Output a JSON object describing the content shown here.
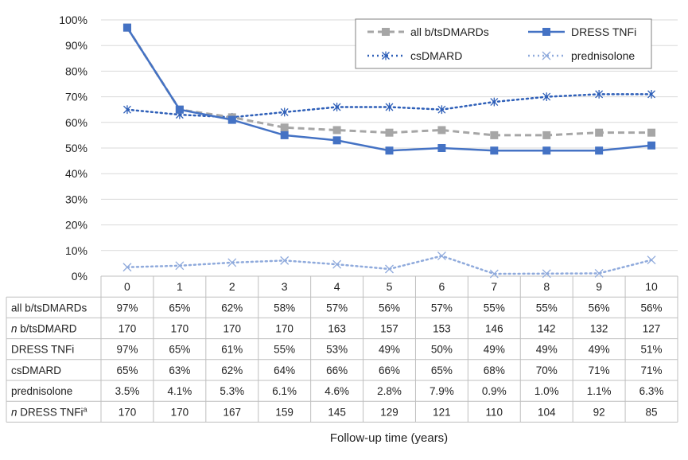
{
  "chart_data": {
    "type": "line",
    "title": "",
    "xlabel": "Follow-up time (years)",
    "ylabel": "",
    "x": [
      0,
      1,
      2,
      3,
      4,
      5,
      6,
      7,
      8,
      9,
      10
    ],
    "x_ticks": [
      "0",
      "1",
      "2",
      "3",
      "4",
      "5",
      "6",
      "7",
      "8",
      "9",
      "10"
    ],
    "ylim": [
      0,
      100
    ],
    "y_ticks": [
      "0%",
      "10%",
      "20%",
      "30%",
      "40%",
      "50%",
      "60%",
      "70%",
      "80%",
      "90%",
      "100%"
    ],
    "grid": true,
    "legend_position": "top-right",
    "series": [
      {
        "key": "all",
        "name": "all b/tsDMARDs",
        "color": "#a6a6a6",
        "style": "dashed",
        "marker": "square",
        "values": [
          97,
          65,
          62,
          58,
          57,
          56,
          57,
          55,
          55,
          56,
          56
        ]
      },
      {
        "key": "dress",
        "name": "DRESS TNFi",
        "color": "#4472c4",
        "style": "solid",
        "marker": "square",
        "values": [
          97,
          65,
          61,
          55,
          53,
          49,
          50,
          49,
          49,
          49,
          51
        ]
      },
      {
        "key": "cs",
        "name": "csDMARD",
        "color": "#2e5fb8",
        "style": "dotted",
        "marker": "asterisk",
        "values": [
          65,
          63,
          62,
          64,
          66,
          66,
          65,
          68,
          70,
          71,
          71
        ]
      },
      {
        "key": "pred",
        "name": "prednisolone",
        "color": "#8faadc",
        "style": "dotted",
        "marker": "x",
        "values": [
          3.5,
          4.1,
          5.3,
          6.1,
          4.6,
          2.8,
          7.9,
          0.9,
          1.0,
          1.1,
          6.3
        ]
      }
    ],
    "legend_labels": [
      "all b/tsDMARDs",
      "DRESS TNFi",
      "csDMARD",
      "prednisolone"
    ],
    "table": {
      "rows": [
        {
          "label": "all b/tsDMARDs",
          "italic_prefix": "",
          "superscript": "",
          "cells": [
            "97%",
            "65%",
            "62%",
            "58%",
            "57%",
            "56%",
            "57%",
            "55%",
            "55%",
            "56%",
            "56%"
          ]
        },
        {
          "label": " b/tsDMARD",
          "italic_prefix": "n",
          "superscript": "",
          "cells": [
            "170",
            "170",
            "170",
            "170",
            "163",
            "157",
            "153",
            "146",
            "142",
            "132",
            "127"
          ]
        },
        {
          "label": "DRESS TNFi",
          "italic_prefix": "",
          "superscript": "",
          "cells": [
            "97%",
            "65%",
            "61%",
            "55%",
            "53%",
            "49%",
            "50%",
            "49%",
            "49%",
            "49%",
            "51%"
          ]
        },
        {
          "label": "csDMARD",
          "italic_prefix": "",
          "superscript": "",
          "cells": [
            "65%",
            "63%",
            "62%",
            "64%",
            "66%",
            "66%",
            "65%",
            "68%",
            "70%",
            "71%",
            "71%"
          ]
        },
        {
          "label": "prednisolone",
          "italic_prefix": "",
          "superscript": "",
          "cells": [
            "3.5%",
            "4.1%",
            "5.3%",
            "6.1%",
            "4.6%",
            "2.8%",
            "7.9%",
            "0.9%",
            "1.0%",
            "1.1%",
            "6.3%"
          ]
        },
        {
          "label": " DRESS TNFi",
          "italic_prefix": "n",
          "superscript": "a",
          "cells": [
            "170",
            "170",
            "167",
            "159",
            "145",
            "129",
            "121",
            "110",
            "104",
            "92",
            "85"
          ]
        }
      ]
    }
  }
}
